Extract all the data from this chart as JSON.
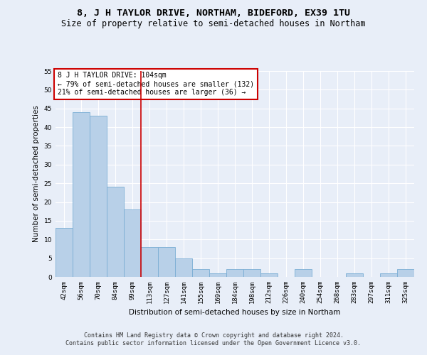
{
  "title": "8, J H TAYLOR DRIVE, NORTHAM, BIDEFORD, EX39 1TU",
  "subtitle": "Size of property relative to semi-detached houses in Northam",
  "xlabel": "Distribution of semi-detached houses by size in Northam",
  "ylabel": "Number of semi-detached properties",
  "categories": [
    "42sqm",
    "56sqm",
    "70sqm",
    "84sqm",
    "99sqm",
    "113sqm",
    "127sqm",
    "141sqm",
    "155sqm",
    "169sqm",
    "184sqm",
    "198sqm",
    "212sqm",
    "226sqm",
    "240sqm",
    "254sqm",
    "268sqm",
    "283sqm",
    "297sqm",
    "311sqm",
    "325sqm"
  ],
  "values": [
    13,
    44,
    43,
    24,
    18,
    8,
    8,
    5,
    2,
    1,
    2,
    2,
    1,
    0,
    2,
    0,
    0,
    1,
    0,
    1,
    2
  ],
  "bar_color": "#b8d0e8",
  "bar_edge_color": "#7aadd4",
  "vline_x": 4.5,
  "vline_color": "#cc0000",
  "annotation_text": "8 J H TAYLOR DRIVE: 104sqm\n← 79% of semi-detached houses are smaller (132)\n21% of semi-detached houses are larger (36) →",
  "annotation_box_color": "#ffffff",
  "annotation_box_edge": "#cc0000",
  "ylim": [
    0,
    55
  ],
  "yticks": [
    0,
    5,
    10,
    15,
    20,
    25,
    30,
    35,
    40,
    45,
    50,
    55
  ],
  "footer_line1": "Contains HM Land Registry data © Crown copyright and database right 2024.",
  "footer_line2": "Contains public sector information licensed under the Open Government Licence v3.0.",
  "background_color": "#e8eef8",
  "grid_color": "#ffffff",
  "title_fontsize": 9.5,
  "subtitle_fontsize": 8.5,
  "axis_label_fontsize": 7.5,
  "tick_fontsize": 6.5,
  "annotation_fontsize": 7,
  "footer_fontsize": 6
}
